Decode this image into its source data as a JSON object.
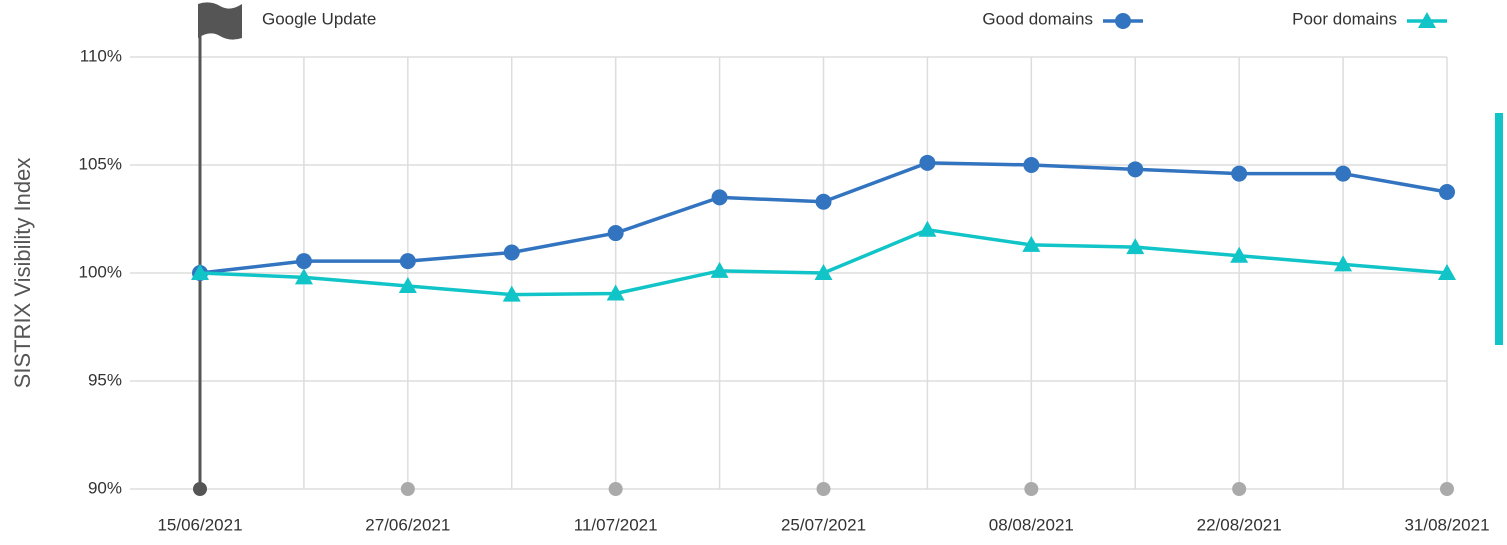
{
  "chart_data": {
    "type": "line",
    "y_label": "SISTRIX Visibility Index",
    "annotation": "Google Update",
    "categories": [
      "15/06/2021",
      null,
      "27/06/2021",
      null,
      "11/07/2021",
      null,
      "25/07/2021",
      null,
      "08/08/2021",
      null,
      "22/08/2021",
      null,
      "31/08/2021"
    ],
    "series": [
      {
        "name": "Good domains",
        "color": "#3274c0",
        "marker": "circle",
        "values": [
          100,
          100.55,
          100.55,
          100.95,
          101.85,
          103.5,
          103.3,
          105.1,
          105,
          104.8,
          104.6,
          104.6,
          103.75
        ]
      },
      {
        "name": "Poor domains",
        "color": "#10c4c8",
        "marker": "triangle",
        "values": [
          100,
          99.8,
          99.4,
          99,
          99.05,
          100.1,
          100,
          102,
          101.3,
          101.2,
          100.8,
          100.4,
          100
        ]
      }
    ],
    "ylim": [
      90,
      110
    ],
    "yticks": [
      {
        "value": 90,
        "label": "90%"
      },
      {
        "value": 95,
        "label": "95%"
      },
      {
        "value": 100,
        "label": "100%"
      },
      {
        "value": 105,
        "label": "105%"
      },
      {
        "value": 110,
        "label": "110%"
      }
    ],
    "grid": true,
    "legend": "top-right"
  }
}
